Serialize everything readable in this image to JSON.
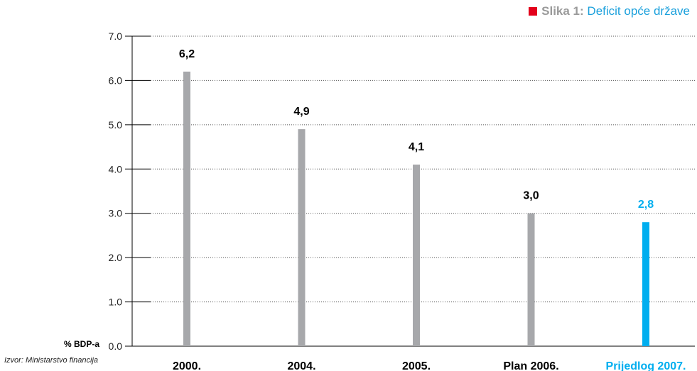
{
  "figure": {
    "label": "Slika 1:",
    "title": "Deficit opće države",
    "source": "Izvor: Ministarstvo financija"
  },
  "colors": {
    "bar": "#a7a8ab",
    "highlight": "#00aeef",
    "marker": "#e3001b",
    "text": "#000000"
  },
  "chart_data": {
    "type": "bar",
    "title": "Deficit opće države",
    "ylabel": "% BDP-a",
    "xlabel": "",
    "ylim": [
      0,
      7
    ],
    "yticks": [
      "0.0",
      "1.0",
      "2.0",
      "3.0",
      "4.0",
      "5.0",
      "6.0",
      "7.0"
    ],
    "categories": [
      "2000.",
      "2004.",
      "2005.",
      "Plan 2006.",
      "Prijedlog 2007."
    ],
    "values": [
      6.2,
      4.9,
      4.1,
      3.0,
      2.8
    ],
    "value_labels": [
      "6,2",
      "4,9",
      "4,1",
      "3,0",
      "2,8"
    ],
    "highlight_index": 4,
    "grid": "horizontal dotted",
    "legend": "none"
  }
}
